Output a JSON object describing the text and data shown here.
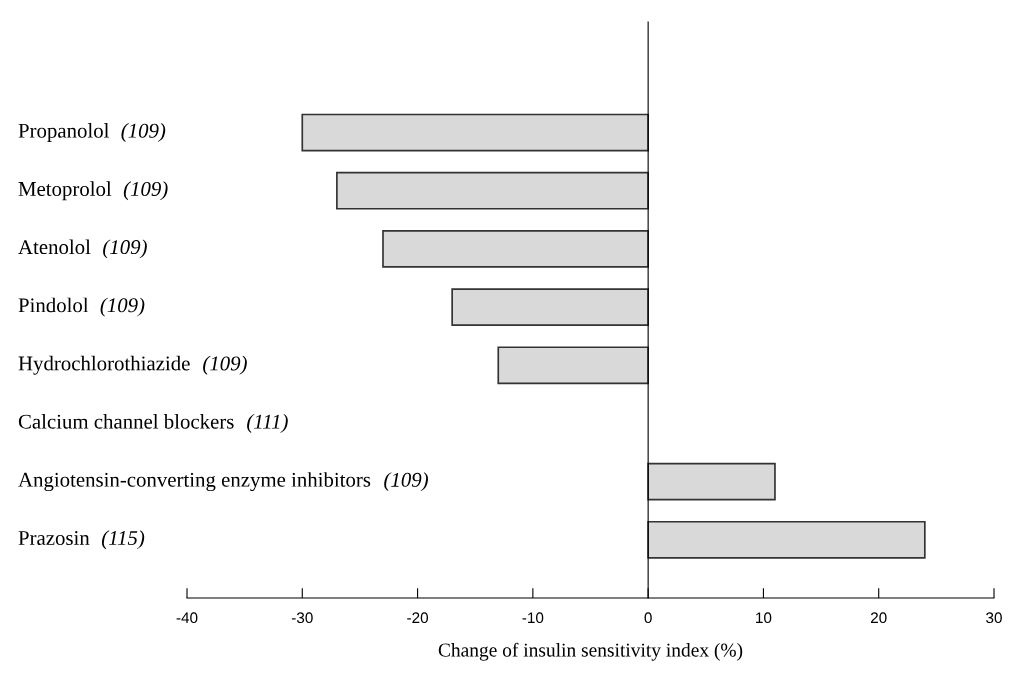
{
  "chart_data": {
    "type": "bar",
    "orientation": "horizontal",
    "categories": [
      "Propanolol (109)",
      "Metoprolol (109)",
      "Atenolol (109)",
      "Pindolol (109)",
      "Hydrochlorothiazide (109)",
      "Calcium channel blockers (111)",
      "Angiotensin-converting enzyme inhibitors (109)",
      "Prazosin (115)"
    ],
    "values": [
      -30,
      -27,
      -23,
      -17,
      -13,
      null,
      11,
      24
    ],
    "color": "#d9d9d9",
    "xlabel": "Change of insulin sensitivity index (%)",
    "xlim": [
      -40,
      30
    ],
    "xticks": [
      -40,
      -30,
      -20,
      -10,
      0,
      10,
      20,
      30
    ]
  }
}
